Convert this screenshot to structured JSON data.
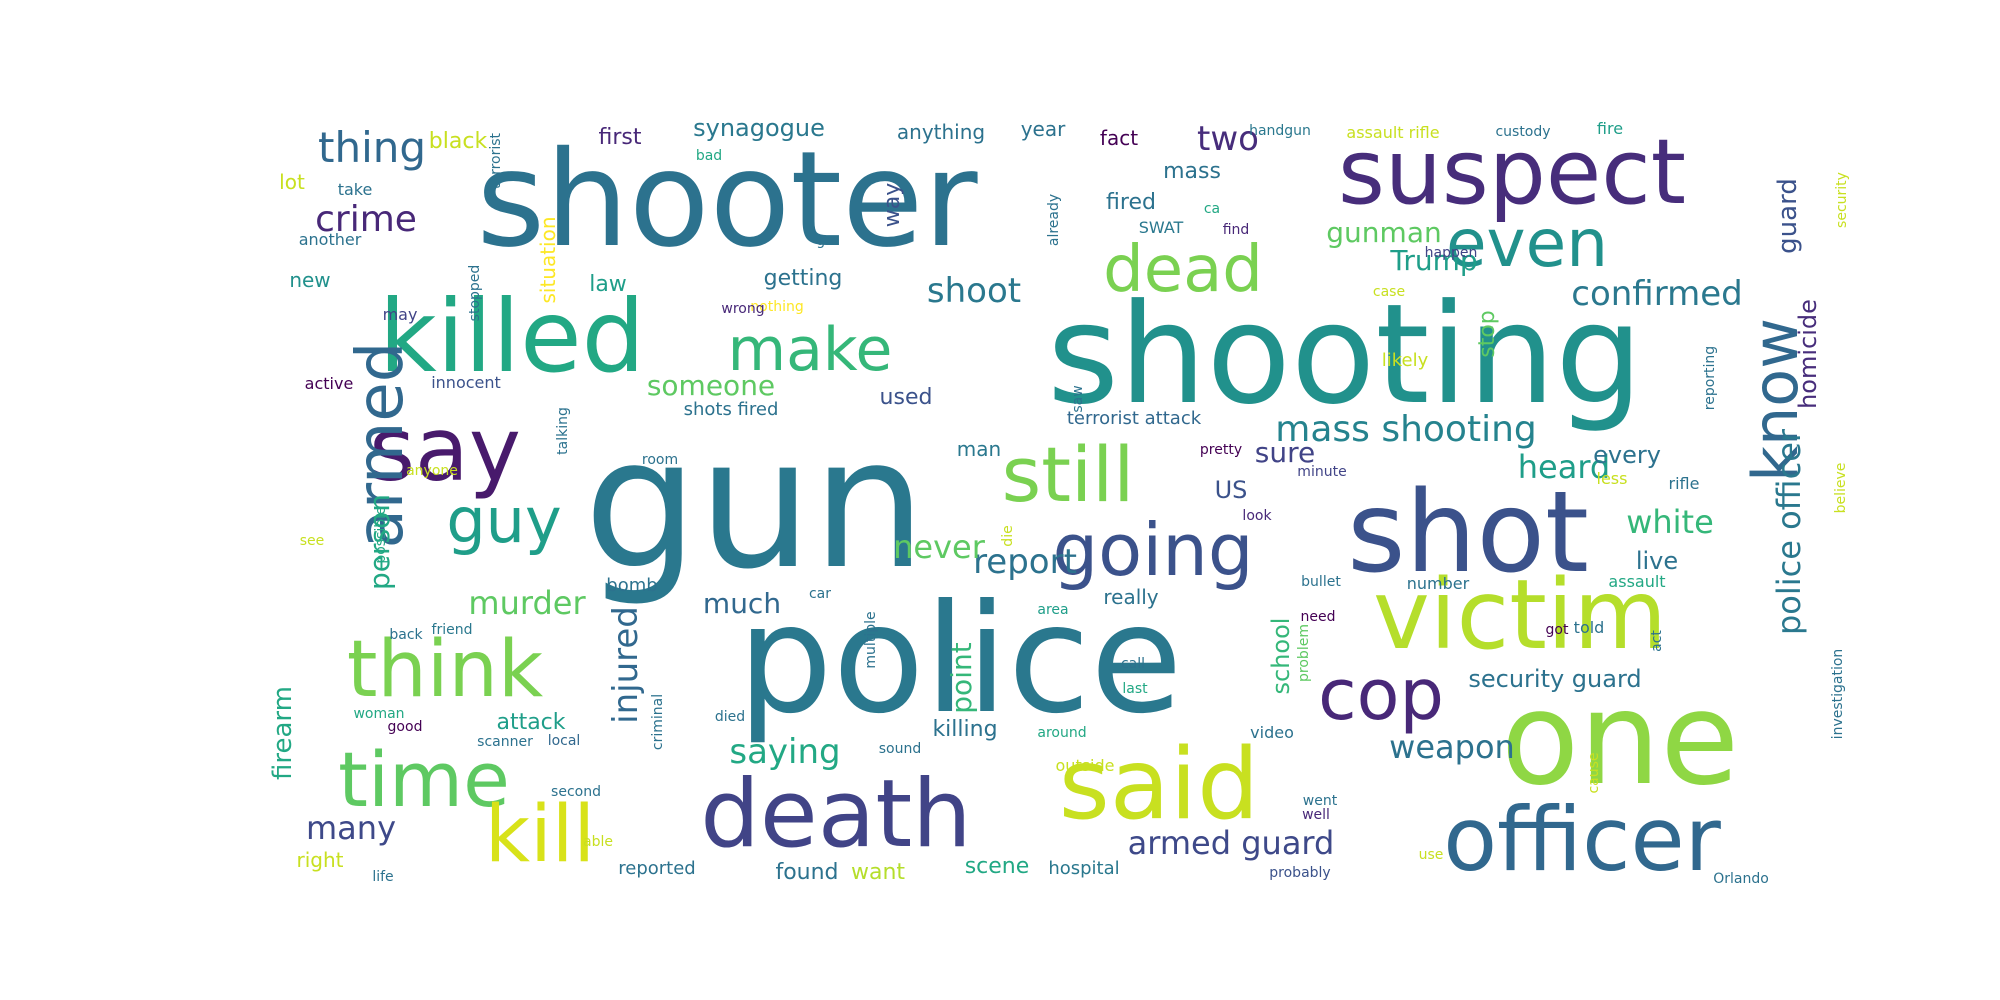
{
  "words": [
    {
      "text": "gun",
      "color": "#2a788e"
    },
    {
      "text": "police",
      "color": "#2a788e"
    },
    {
      "text": "shooting",
      "color": "#21918c"
    },
    {
      "text": "shooter",
      "color": "#2c728e"
    },
    {
      "text": "one",
      "color": "#8fd744"
    },
    {
      "text": "shot",
      "color": "#3b528b"
    },
    {
      "text": "suspect",
      "color": "#472d7b"
    },
    {
      "text": "death",
      "color": "#414487"
    },
    {
      "text": "killed",
      "color": "#22a884"
    },
    {
      "text": "said",
      "color": "#c8e020"
    },
    {
      "text": "victim",
      "color": "#b5de2b"
    },
    {
      "text": "officer",
      "color": "#31688e"
    },
    {
      "text": "say",
      "color": "#481a6c"
    },
    {
      "text": "think",
      "color": "#7ad151"
    },
    {
      "text": "time",
      "color": "#5ec962"
    },
    {
      "text": "still",
      "color": "#7ad151"
    },
    {
      "text": "going",
      "color": "#3b528b"
    },
    {
      "text": "even",
      "color": "#21918c"
    },
    {
      "text": "dead",
      "color": "#7ad151"
    },
    {
      "text": "kill",
      "color": "#d8e219"
    },
    {
      "text": "make",
      "color": "#35b779"
    },
    {
      "text": "guy",
      "color": "#1f9e89"
    },
    {
      "text": "armed",
      "color": "#31688e"
    },
    {
      "text": "cop",
      "color": "#482878"
    },
    {
      "text": "know",
      "color": "#31688e"
    },
    {
      "text": "thing",
      "color": "#31688e"
    },
    {
      "text": "crime",
      "color": "#482878"
    },
    {
      "text": "someone",
      "color": "#5ec962"
    },
    {
      "text": "mass shooting",
      "color": "#25838e"
    },
    {
      "text": "police officer",
      "color": "#2a788e"
    },
    {
      "text": "murder",
      "color": "#5ec962"
    },
    {
      "text": "report",
      "color": "#2c728e"
    },
    {
      "text": "never",
      "color": "#5ec962"
    },
    {
      "text": "white",
      "color": "#35b779"
    },
    {
      "text": "heard",
      "color": "#1f9e89"
    },
    {
      "text": "shoot",
      "color": "#2a788e"
    },
    {
      "text": "confirmed",
      "color": "#2a788e"
    },
    {
      "text": "gunman",
      "color": "#5ec962"
    },
    {
      "text": "Trump",
      "color": "#1f9e89"
    },
    {
      "text": "two",
      "color": "#472d7b"
    },
    {
      "text": "guard",
      "color": "#3b528b"
    },
    {
      "text": "armed guard",
      "color": "#3e4989"
    },
    {
      "text": "weapon",
      "color": "#2c728e"
    },
    {
      "text": "saying",
      "color": "#22a884"
    },
    {
      "text": "many",
      "color": "#3e4989"
    },
    {
      "text": "much",
      "color": "#31688e"
    },
    {
      "text": "person",
      "color": "#22a884"
    },
    {
      "text": "firearm",
      "color": "#22a884"
    },
    {
      "text": "injured",
      "color": "#31688e"
    },
    {
      "text": "point",
      "color": "#35b779"
    },
    {
      "text": "sure",
      "color": "#414487"
    },
    {
      "text": "US",
      "color": "#3b528b"
    },
    {
      "text": "security guard",
      "color": "#2c728e"
    },
    {
      "text": "school",
      "color": "#35b779"
    },
    {
      "text": "homicide",
      "color": "#472d7b"
    },
    {
      "text": "every",
      "color": "#2c728e"
    },
    {
      "text": "live",
      "color": "#2c728e"
    },
    {
      "text": "synagogue",
      "color": "#2a788e"
    },
    {
      "text": "black",
      "color": "#c8e020"
    },
    {
      "text": "first",
      "color": "#482878"
    },
    {
      "text": "year",
      "color": "#2c728e"
    },
    {
      "text": "anything",
      "color": "#2c728e"
    },
    {
      "text": "fact",
      "color": "#440154"
    },
    {
      "text": "mass",
      "color": "#2c728e"
    },
    {
      "text": "fired",
      "color": "#2c728e"
    },
    {
      "text": "way",
      "color": "#3b528b"
    },
    {
      "text": "getting",
      "color": "#2c728e"
    },
    {
      "text": "law",
      "color": "#1f9e89"
    },
    {
      "text": "new",
      "color": "#21918c"
    },
    {
      "text": "situation",
      "color": "#fde725"
    },
    {
      "text": "lot",
      "color": "#c8e020"
    },
    {
      "text": "take",
      "color": "#2c728e"
    },
    {
      "text": "another",
      "color": "#2c728e"
    },
    {
      "text": "may",
      "color": "#414487"
    },
    {
      "text": "active",
      "color": "#440154"
    },
    {
      "text": "innocent",
      "color": "#3b528b"
    },
    {
      "text": "used",
      "color": "#3b528b"
    },
    {
      "text": "man",
      "color": "#2a788e"
    },
    {
      "text": "terrorist attack",
      "color": "#31688e"
    },
    {
      "text": "shots fired",
      "color": "#2c728e"
    },
    {
      "text": "room",
      "color": "#2c728e"
    },
    {
      "text": "attack",
      "color": "#1f9e89"
    },
    {
      "text": "killing",
      "color": "#2c728e"
    },
    {
      "text": "bomb",
      "color": "#2c728e"
    },
    {
      "text": "really",
      "color": "#2c728e"
    },
    {
      "text": "found",
      "color": "#2c728e"
    },
    {
      "text": "want",
      "color": "#b5de2b"
    },
    {
      "text": "scene",
      "color": "#22a884"
    },
    {
      "text": "hospital",
      "color": "#2a788e"
    },
    {
      "text": "reported",
      "color": "#2c728e"
    },
    {
      "text": "right",
      "color": "#c8e020"
    },
    {
      "text": "life",
      "color": "#2c728e"
    },
    {
      "text": "handgun",
      "color": "#2a788e"
    },
    {
      "text": "assault rifle",
      "color": "#c8e020"
    },
    {
      "text": "custody",
      "color": "#2c728e"
    },
    {
      "text": "fire",
      "color": "#1f9e89"
    },
    {
      "text": "SWAT",
      "color": "#2a788e"
    },
    {
      "text": "find",
      "color": "#482878"
    },
    {
      "text": "ca",
      "color": "#22a884"
    },
    {
      "text": "happen",
      "color": "#414487"
    },
    {
      "text": "case",
      "color": "#c8e020"
    },
    {
      "text": "stop",
      "color": "#5ec962"
    },
    {
      "text": "likely",
      "color": "#c8e020"
    },
    {
      "text": "pretty",
      "color": "#440154"
    },
    {
      "text": "minute",
      "color": "#414487"
    },
    {
      "text": "less",
      "color": "#c8e020"
    },
    {
      "text": "rifle",
      "color": "#2c728e"
    },
    {
      "text": "look",
      "color": "#482878"
    },
    {
      "text": "number",
      "color": "#2c728e"
    },
    {
      "text": "assault",
      "color": "#22a884"
    },
    {
      "text": "bullet",
      "color": "#2c728e"
    },
    {
      "text": "told",
      "color": "#2c728e"
    },
    {
      "text": "got",
      "color": "#440154"
    },
    {
      "text": "call",
      "color": "#2c728e"
    },
    {
      "text": "last",
      "color": "#22a884"
    },
    {
      "text": "video",
      "color": "#2c728e"
    },
    {
      "text": "around",
      "color": "#22a884"
    },
    {
      "text": "outside",
      "color": "#c8e020"
    },
    {
      "text": "sound",
      "color": "#2c728e"
    },
    {
      "text": "died",
      "color": "#2c728e"
    },
    {
      "text": "area",
      "color": "#1f9e89"
    },
    {
      "text": "car",
      "color": "#2c728e"
    },
    {
      "text": "need",
      "color": "#440154"
    },
    {
      "text": "friend",
      "color": "#2a788e"
    },
    {
      "text": "back",
      "color": "#2c728e"
    },
    {
      "text": "woman",
      "color": "#22a884"
    },
    {
      "text": "good",
      "color": "#440154"
    },
    {
      "text": "scanner",
      "color": "#2c728e"
    },
    {
      "text": "local",
      "color": "#31688e"
    },
    {
      "text": "second",
      "color": "#2c728e"
    },
    {
      "text": "able",
      "color": "#c8e020"
    },
    {
      "text": "went",
      "color": "#2c728e"
    },
    {
      "text": "well",
      "color": "#482878"
    },
    {
      "text": "probably",
      "color": "#3b528b"
    },
    {
      "text": "use",
      "color": "#c8e020"
    },
    {
      "text": "Orlando",
      "color": "#2c728e"
    },
    {
      "text": "anyone",
      "color": "#c8e020"
    },
    {
      "text": "see",
      "color": "#c8e020"
    },
    {
      "text": "bad",
      "color": "#22a884"
    },
    {
      "text": "go",
      "color": "#2c728e"
    },
    {
      "text": "nothing",
      "color": "#fde725"
    },
    {
      "text": "wrong",
      "color": "#482878"
    },
    {
      "text": "terrorist",
      "color": "#2c728e"
    },
    {
      "text": "stopped",
      "color": "#2c728e"
    },
    {
      "text": "already",
      "color": "#2c728e"
    },
    {
      "text": "saw",
      "color": "#2c728e"
    },
    {
      "text": "talking",
      "color": "#2c728e"
    },
    {
      "text": "possible",
      "color": "#22a884"
    },
    {
      "text": "die",
      "color": "#c8e020"
    },
    {
      "text": "criminal",
      "color": "#2c728e"
    },
    {
      "text": "multiple",
      "color": "#2c728e"
    },
    {
      "text": "problem",
      "color": "#5ec962"
    },
    {
      "text": "act",
      "color": "#2c728e"
    },
    {
      "text": "investigation",
      "color": "#2c728e"
    },
    {
      "text": "cause",
      "color": "#c8e020"
    },
    {
      "text": "reporting",
      "color": "#2c728e"
    },
    {
      "text": "believe",
      "color": "#c8e020"
    },
    {
      "text": "security",
      "color": "#c8e020"
    }
  ]
}
